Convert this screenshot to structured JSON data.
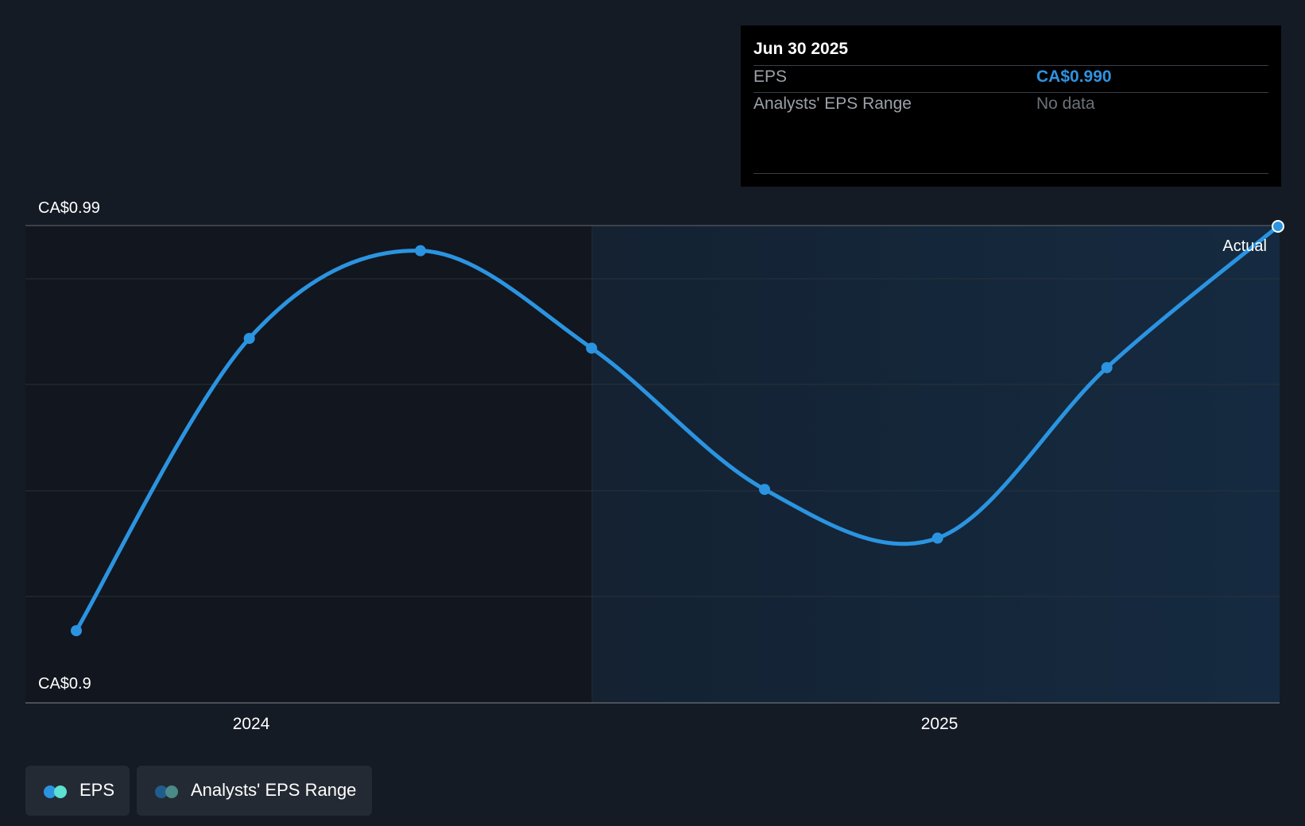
{
  "chart_data": {
    "type": "line",
    "x": [
      "2023-09-30",
      "2023-12-31",
      "2024-03-31",
      "2024-06-30",
      "2024-09-30",
      "2024-12-31",
      "2025-03-31",
      "2025-06-30"
    ],
    "series": [
      {
        "name": "EPS",
        "values": [
          0.907,
          0.967,
          0.985,
          0.965,
          0.936,
          0.926,
          0.961,
          0.99
        ]
      }
    ],
    "ylim": [
      0.9,
      0.99
    ],
    "y_tick_labels": [
      "CA$0.99",
      "CA$0.9"
    ],
    "x_tick_labels": [
      "2024",
      "2025"
    ],
    "x_ticks": [
      "2024-01-01",
      "2025-01-01"
    ],
    "grid": true,
    "shaded_region_start": "2024-06-30",
    "point_label": "Actual",
    "colors": {
      "eps_line": "#2b94e1",
      "background": "#151b24",
      "highlight_region": "#152434"
    }
  },
  "tooltip": {
    "date": "Jun 30 2025",
    "rows": [
      {
        "label": "EPS",
        "value": "CA$0.990"
      },
      {
        "label": "Analysts' EPS Range",
        "value": "No data"
      }
    ]
  },
  "legend": [
    {
      "label": "EPS",
      "colors": [
        "#2b94e1",
        "#5ce0d0"
      ]
    },
    {
      "label": "Analysts' EPS Range",
      "colors": [
        "#1f5e8c",
        "#4a8a88"
      ]
    }
  ]
}
